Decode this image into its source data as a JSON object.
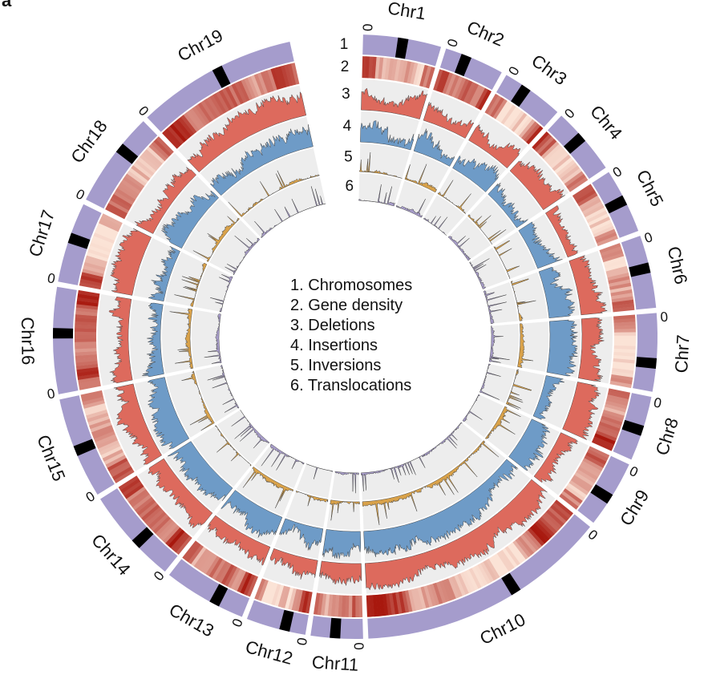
{
  "panel_letter": "a",
  "zero_tick_label": "0",
  "chromosomes": [
    "Chr1",
    "Chr2",
    "Chr3",
    "Chr4",
    "Chr5",
    "Chr6",
    "Chr7",
    "Chr8",
    "Chr9",
    "Chr10",
    "Chr11",
    "Chr12",
    "Chr13",
    "Chr14",
    "Chr15",
    "Chr16",
    "Chr17",
    "Chr18",
    "Chr19"
  ],
  "track_numbers": [
    "1",
    "2",
    "3",
    "4",
    "5",
    "6"
  ],
  "legend": [
    {
      "num": "1.",
      "text": "Chromosomes"
    },
    {
      "num": "2.",
      "text": "Gene density"
    },
    {
      "num": "3.",
      "text": "Deletions"
    },
    {
      "num": "4.",
      "text": "Insertions"
    },
    {
      "num": "5.",
      "text": "Inversions"
    },
    {
      "num": "6.",
      "text": "Translocations"
    }
  ],
  "colors": {
    "chromosome": "#a59ccc",
    "centromere": "#000000",
    "gene_density_low": "#fbe3d6",
    "gene_density_high": "#a8180e",
    "deletions": "#dd6a5d",
    "insertions": "#6e9bc7",
    "inversions": "#d9a24a",
    "translocations": "#a79cc9",
    "track_background": "#ededed"
  },
  "chart_data": {
    "type": "circos",
    "tracks": [
      "Chromosomes",
      "Gene density",
      "Deletions",
      "Insertions",
      "Inversions",
      "Translocations"
    ]
  }
}
